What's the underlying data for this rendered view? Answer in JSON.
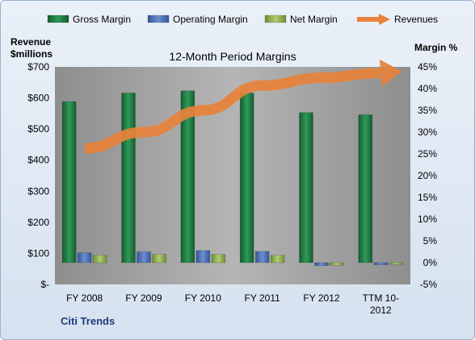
{
  "chart_data": {
    "type": "bar",
    "title": "12-Month Period Margins",
    "company": "Citi Trends",
    "left_axis_label_line1": "Revenue",
    "left_axis_label_line2": "$millions",
    "right_axis_label": "Margin %",
    "categories": [
      "FY 2008",
      "FY 2009",
      "FY 2010",
      "FY 2011",
      "FY 2012",
      "TTM 10-2012"
    ],
    "category_labels": [
      [
        "FY 2008"
      ],
      [
        "FY 2009"
      ],
      [
        "FY 2010"
      ],
      [
        "FY 2011"
      ],
      [
        "FY 2012"
      ],
      [
        "TTM 10-",
        "2012"
      ]
    ],
    "left_ticks": [
      "$-",
      "$100",
      "$200",
      "$300",
      "$400",
      "$500",
      "$600",
      "$700"
    ],
    "right_ticks": [
      "-5%",
      "0%",
      "5%",
      "10%",
      "15%",
      "20%",
      "25%",
      "30%",
      "35%",
      "40%",
      "45%"
    ],
    "ylim_revenue": [
      0,
      700
    ],
    "ylim_margin": [
      -5,
      45
    ],
    "series": [
      {
        "name": "Gross Margin",
        "axis": "right",
        "color": "#1f7a43",
        "values": [
          37.0,
          39.0,
          39.5,
          39.0,
          34.5,
          34.0
        ]
      },
      {
        "name": "Operating Margin",
        "axis": "right",
        "color": "#4a6fb5",
        "values": [
          2.3,
          2.5,
          2.8,
          2.6,
          -0.7,
          -0.5
        ]
      },
      {
        "name": "Net Margin",
        "axis": "right",
        "color": "#8fb04d",
        "values": [
          1.7,
          1.9,
          1.9,
          1.7,
          -0.6,
          -0.4
        ]
      },
      {
        "name": "Revenues",
        "axis": "left",
        "color": "#e8823a",
        "type": "arrow",
        "values": [
          438,
          490,
          560,
          640,
          665,
          680
        ]
      }
    ],
    "legend_position": "top",
    "grid": false
  },
  "colors": {
    "plot_background": "#9e9e9e",
    "frame_border": "#9bb1cf",
    "company_text": "#1f3a7a"
  }
}
